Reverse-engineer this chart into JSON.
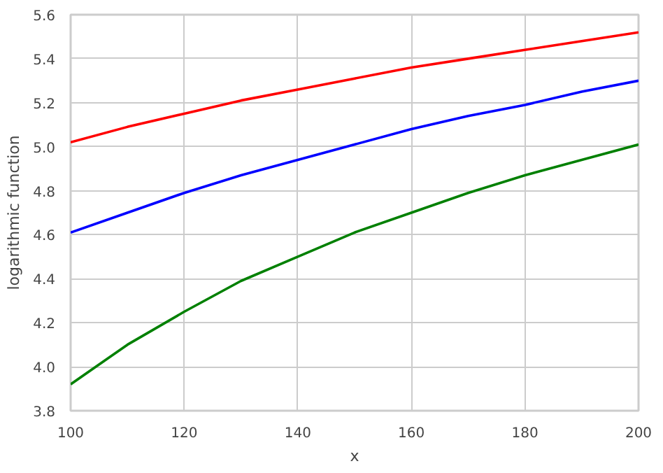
{
  "chart_data": {
    "type": "line",
    "xlabel": "x",
    "ylabel": "logarithmic function",
    "x": [
      100,
      110,
      120,
      130,
      140,
      150,
      160,
      170,
      180,
      190,
      200
    ],
    "series": [
      {
        "color": "#ff0000",
        "values": [
          5.02,
          5.09,
          5.15,
          5.21,
          5.26,
          5.31,
          5.36,
          5.4,
          5.44,
          5.48,
          5.52
        ]
      },
      {
        "color": "#0000ff",
        "values": [
          4.61,
          4.7,
          4.79,
          4.87,
          4.94,
          5.01,
          5.08,
          5.14,
          5.19,
          5.25,
          5.3
        ]
      },
      {
        "color": "#008000",
        "values": [
          3.92,
          4.1,
          4.25,
          4.39,
          4.5,
          4.61,
          4.7,
          4.79,
          4.87,
          4.94,
          5.01
        ]
      }
    ],
    "xlim": [
      100,
      200
    ],
    "ylim": [
      3.8,
      5.6
    ],
    "xticks": [
      100,
      120,
      140,
      160,
      180,
      200
    ],
    "yticks": [
      {
        "value": 3.8,
        "label": "3.8"
      },
      {
        "value": 4.0,
        "label": "4.0"
      },
      {
        "value": 4.2,
        "label": "4.2"
      },
      {
        "value": 4.4,
        "label": "4.4"
      },
      {
        "value": 4.6,
        "label": "4.6"
      },
      {
        "value": 4.8,
        "label": "4.8"
      },
      {
        "value": 5.0,
        "label": "5.0"
      },
      {
        "value": 5.2,
        "label": "5.2"
      },
      {
        "value": 5.4,
        "label": "5.4"
      },
      {
        "value": 5.6,
        "label": "5.6"
      }
    ],
    "grid": true
  }
}
